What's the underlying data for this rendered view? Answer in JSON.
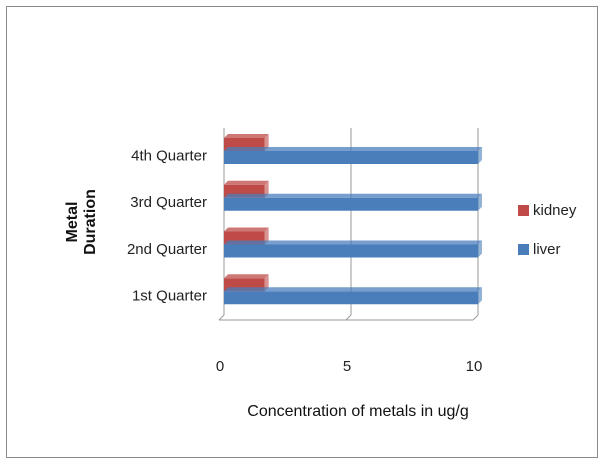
{
  "chart_data": {
    "type": "bar",
    "orientation": "horizontal",
    "categories": [
      "1st Quarter",
      "2nd Quarter",
      "3rd Quarter",
      "4th Quarter"
    ],
    "series": [
      {
        "name": "liver",
        "color": "#4a7ebb",
        "values": [
          10,
          10,
          10,
          10
        ]
      },
      {
        "name": "kidney",
        "color": "#be4b48",
        "values": [
          1.6,
          1.6,
          1.6,
          1.6
        ]
      }
    ],
    "x_ticks": [
      "0",
      "5",
      "10"
    ],
    "xlim": [
      0,
      10
    ],
    "xlabel": "Concentration of metals in ug/g",
    "ylabel_lines": [
      "Metal",
      "Duration"
    ],
    "grid": true,
    "legend_position": "right"
  }
}
